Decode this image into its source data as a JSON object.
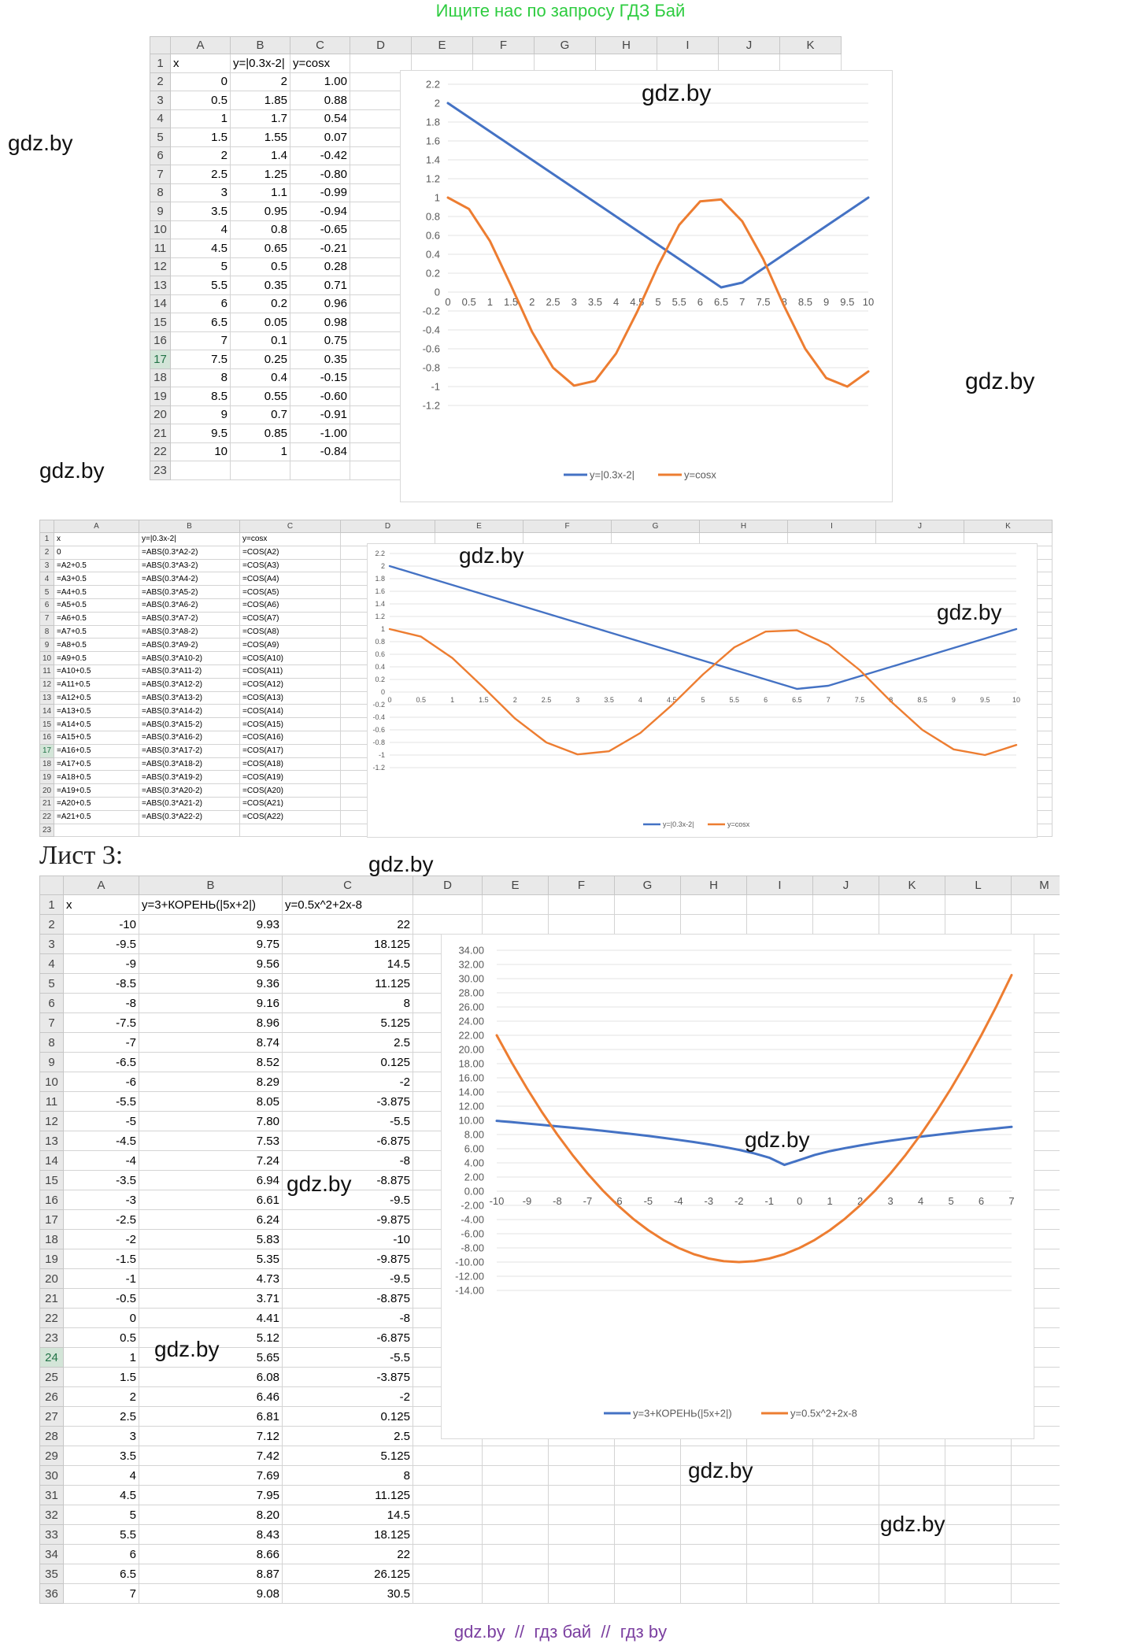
{
  "banner": "Ищите нас по запросу ГДЗ Бай",
  "footer": "gdz.by  //  гдз бай  //  гдз by",
  "watermark": "gdz.by",
  "sheet3_label": "Лист 3:",
  "colors": {
    "blue": "#4472c4",
    "orange": "#ed7d31",
    "banner": "#2ecc40",
    "footer": "#7b3fa0"
  },
  "sheet1": {
    "columns": [
      "A",
      "B",
      "C",
      "D",
      "E",
      "F",
      "G",
      "H",
      "I",
      "J",
      "K"
    ],
    "headers": [
      "x",
      "y=|0.3x-2|",
      "y=cosx"
    ],
    "rows": [
      [
        "0",
        "2",
        "1.00"
      ],
      [
        "0.5",
        "1.85",
        "0.88"
      ],
      [
        "1",
        "1.7",
        "0.54"
      ],
      [
        "1.5",
        "1.55",
        "0.07"
      ],
      [
        "2",
        "1.4",
        "-0.42"
      ],
      [
        "2.5",
        "1.25",
        "-0.80"
      ],
      [
        "3",
        "1.1",
        "-0.99"
      ],
      [
        "3.5",
        "0.95",
        "-0.94"
      ],
      [
        "4",
        "0.8",
        "-0.65"
      ],
      [
        "4.5",
        "0.65",
        "-0.21"
      ],
      [
        "5",
        "0.5",
        "0.28"
      ],
      [
        "5.5",
        "0.35",
        "0.71"
      ],
      [
        "6",
        "0.2",
        "0.96"
      ],
      [
        "6.5",
        "0.05",
        "0.98"
      ],
      [
        "7",
        "0.1",
        "0.75"
      ],
      [
        "7.5",
        "0.25",
        "0.35"
      ],
      [
        "8",
        "0.4",
        "-0.15"
      ],
      [
        "8.5",
        "0.55",
        "-0.60"
      ],
      [
        "9",
        "0.7",
        "-0.91"
      ],
      [
        "9.5",
        "0.85",
        "-1.00"
      ],
      [
        "10",
        "1",
        "-0.84"
      ]
    ]
  },
  "sheet2": {
    "columns": [
      "A",
      "B",
      "C",
      "D",
      "E",
      "F",
      "G",
      "H",
      "I",
      "J",
      "K"
    ],
    "headers": [
      "x",
      "y=|0.3x-2|",
      "y=cosx"
    ],
    "rows": [
      [
        "0",
        "=ABS(0.3*A2-2)",
        "=COS(A2)"
      ],
      [
        "=A2+0.5",
        "=ABS(0.3*A3-2)",
        "=COS(A3)"
      ],
      [
        "=A3+0.5",
        "=ABS(0.3*A4-2)",
        "=COS(A4)"
      ],
      [
        "=A4+0.5",
        "=ABS(0.3*A5-2)",
        "=COS(A5)"
      ],
      [
        "=A5+0.5",
        "=ABS(0.3*A6-2)",
        "=COS(A6)"
      ],
      [
        "=A6+0.5",
        "=ABS(0.3*A7-2)",
        "=COS(A7)"
      ],
      [
        "=A7+0.5",
        "=ABS(0.3*A8-2)",
        "=COS(A8)"
      ],
      [
        "=A8+0.5",
        "=ABS(0.3*A9-2)",
        "=COS(A9)"
      ],
      [
        "=A9+0.5",
        "=ABS(0.3*A10-2)",
        "=COS(A10)"
      ],
      [
        "=A10+0.5",
        "=ABS(0.3*A11-2)",
        "=COS(A11)"
      ],
      [
        "=A11+0.5",
        "=ABS(0.3*A12-2)",
        "=COS(A12)"
      ],
      [
        "=A12+0.5",
        "=ABS(0.3*A13-2)",
        "=COS(A13)"
      ],
      [
        "=A13+0.5",
        "=ABS(0.3*A14-2)",
        "=COS(A14)"
      ],
      [
        "=A14+0.5",
        "=ABS(0.3*A15-2)",
        "=COS(A15)"
      ],
      [
        "=A15+0.5",
        "=ABS(0.3*A16-2)",
        "=COS(A16)"
      ],
      [
        "=A16+0.5",
        "=ABS(0.3*A17-2)",
        "=COS(A17)"
      ],
      [
        "=A17+0.5",
        "=ABS(0.3*A18-2)",
        "=COS(A18)"
      ],
      [
        "=A18+0.5",
        "=ABS(0.3*A19-2)",
        "=COS(A19)"
      ],
      [
        "=A19+0.5",
        "=ABS(0.3*A20-2)",
        "=COS(A20)"
      ],
      [
        "=A20+0.5",
        "=ABS(0.3*A21-2)",
        "=COS(A21)"
      ],
      [
        "=A21+0.5",
        "=ABS(0.3*A22-2)",
        "=COS(A22)"
      ]
    ]
  },
  "sheet3": {
    "columns": [
      "A",
      "B",
      "C",
      "D",
      "E",
      "F",
      "G",
      "H",
      "I",
      "J",
      "K",
      "L",
      "M"
    ],
    "headers": [
      "x",
      "y=3+КОРЕНЬ(|5x+2|)",
      "y=0.5x^2+2x-8"
    ],
    "rows": [
      [
        "-10",
        "9.93",
        "22"
      ],
      [
        "-9.5",
        "9.75",
        "18.125"
      ],
      [
        "-9",
        "9.56",
        "14.5"
      ],
      [
        "-8.5",
        "9.36",
        "11.125"
      ],
      [
        "-8",
        "9.16",
        "8"
      ],
      [
        "-7.5",
        "8.96",
        "5.125"
      ],
      [
        "-7",
        "8.74",
        "2.5"
      ],
      [
        "-6.5",
        "8.52",
        "0.125"
      ],
      [
        "-6",
        "8.29",
        "-2"
      ],
      [
        "-5.5",
        "8.05",
        "-3.875"
      ],
      [
        "-5",
        "7.80",
        "-5.5"
      ],
      [
        "-4.5",
        "7.53",
        "-6.875"
      ],
      [
        "-4",
        "7.24",
        "-8"
      ],
      [
        "-3.5",
        "6.94",
        "-8.875"
      ],
      [
        "-3",
        "6.61",
        "-9.5"
      ],
      [
        "-2.5",
        "6.24",
        "-9.875"
      ],
      [
        "-2",
        "5.83",
        "-10"
      ],
      [
        "-1.5",
        "5.35",
        "-9.875"
      ],
      [
        "-1",
        "4.73",
        "-9.5"
      ],
      [
        "-0.5",
        "3.71",
        "-8.875"
      ],
      [
        "0",
        "4.41",
        "-8"
      ],
      [
        "0.5",
        "5.12",
        "-6.875"
      ],
      [
        "1",
        "5.65",
        "-5.5"
      ],
      [
        "1.5",
        "6.08",
        "-3.875"
      ],
      [
        "2",
        "6.46",
        "-2"
      ],
      [
        "2.5",
        "6.81",
        "0.125"
      ],
      [
        "3",
        "7.12",
        "2.5"
      ],
      [
        "3.5",
        "7.42",
        "5.125"
      ],
      [
        "4",
        "7.69",
        "8"
      ],
      [
        "4.5",
        "7.95",
        "11.125"
      ],
      [
        "5",
        "8.20",
        "14.5"
      ],
      [
        "5.5",
        "8.43",
        "18.125"
      ],
      [
        "6",
        "8.66",
        "22"
      ],
      [
        "6.5",
        "8.87",
        "26.125"
      ],
      [
        "7",
        "9.08",
        "30.5"
      ]
    ]
  },
  "chart_data": [
    {
      "type": "line",
      "x": [
        "0",
        "0.5",
        "1",
        "1.5",
        "2",
        "2.5",
        "3",
        "3.5",
        "4",
        "4.5",
        "5",
        "5.5",
        "6",
        "6.5",
        "7",
        "7.5",
        "8",
        "8.5",
        "9",
        "9.5",
        "10"
      ],
      "series": [
        {
          "name": "y=|0.3x-2|",
          "values": [
            2,
            1.85,
            1.7,
            1.55,
            1.4,
            1.25,
            1.1,
            0.95,
            0.8,
            0.65,
            0.5,
            0.35,
            0.2,
            0.05,
            0.1,
            0.25,
            0.4,
            0.55,
            0.7,
            0.85,
            1
          ]
        },
        {
          "name": "y=cosx",
          "values": [
            1.0,
            0.88,
            0.54,
            0.07,
            -0.42,
            -0.8,
            -0.99,
            -0.94,
            -0.65,
            -0.21,
            0.28,
            0.71,
            0.96,
            0.98,
            0.75,
            0.35,
            -0.15,
            -0.6,
            -0.91,
            -1.0,
            -0.84
          ]
        }
      ],
      "yticks": [
        "2.2",
        "2",
        "1.8",
        "1.6",
        "1.4",
        "1.2",
        "1",
        "0.8",
        "0.6",
        "0.4",
        "0.2",
        "0",
        "-0.2",
        "-0.4",
        "-0.6",
        "-0.8",
        "-1",
        "-1.2"
      ],
      "ylim": [
        -1.2,
        2.2
      ],
      "legend": "bottom"
    },
    {
      "type": "line",
      "x": [
        "0",
        "0.5",
        "1",
        "1.5",
        "2",
        "2.5",
        "3",
        "3.5",
        "4",
        "4.5",
        "5",
        "5.5",
        "6",
        "6.5",
        "7",
        "7.5",
        "8",
        "8.5",
        "9",
        "9.5",
        "10"
      ],
      "series": [
        {
          "name": "y=|0.3x-2|",
          "values": [
            2,
            1.85,
            1.7,
            1.55,
            1.4,
            1.25,
            1.1,
            0.95,
            0.8,
            0.65,
            0.5,
            0.35,
            0.2,
            0.05,
            0.1,
            0.25,
            0.4,
            0.55,
            0.7,
            0.85,
            1
          ]
        },
        {
          "name": "y=cosx",
          "values": [
            1.0,
            0.88,
            0.54,
            0.07,
            -0.42,
            -0.8,
            -0.99,
            -0.94,
            -0.65,
            -0.21,
            0.28,
            0.71,
            0.96,
            0.98,
            0.75,
            0.35,
            -0.15,
            -0.6,
            -0.91,
            -1.0,
            -0.84
          ]
        }
      ],
      "yticks": [
        "2.2",
        "2",
        "1.8",
        "1.6",
        "1.4",
        "1.2",
        "1",
        "0.8",
        "0.6",
        "0.4",
        "0.2",
        "0",
        "-0.2",
        "-0.4",
        "-0.6",
        "-0.8",
        "-1",
        "-1.2"
      ],
      "ylim": [
        -1.2,
        2.2
      ],
      "legend": "bottom"
    },
    {
      "type": "line",
      "x": [
        "-10",
        "-9.5",
        "-9",
        "-8.5",
        "-8",
        "-7.5",
        "-7",
        "-6.5",
        "-6",
        "-5.5",
        "-5",
        "-4.5",
        "-4",
        "-3.5",
        "-3",
        "-2.5",
        "-2",
        "-1.5",
        "-1",
        "-0.5",
        "0",
        "0.5",
        "1",
        "1.5",
        "2",
        "2.5",
        "3",
        "3.5",
        "4",
        "4.5",
        "5",
        "5.5",
        "6",
        "6.5",
        "7"
      ],
      "xticks": [
        "-10",
        "-9",
        "-8",
        "-7",
        "-6",
        "-5",
        "-4",
        "-3",
        "-2",
        "-1",
        "0",
        "1",
        "2",
        "3",
        "4",
        "5",
        "6",
        "7"
      ],
      "series": [
        {
          "name": "y=3+КОРЕНЬ(|5x+2|)",
          "values": [
            9.93,
            9.75,
            9.56,
            9.36,
            9.16,
            8.96,
            8.74,
            8.52,
            8.29,
            8.05,
            7.8,
            7.53,
            7.24,
            6.94,
            6.61,
            6.24,
            5.83,
            5.35,
            4.73,
            3.71,
            4.41,
            5.12,
            5.65,
            6.08,
            6.46,
            6.81,
            7.12,
            7.42,
            7.69,
            7.95,
            8.2,
            8.43,
            8.66,
            8.87,
            9.08
          ]
        },
        {
          "name": "y=0.5x^2+2x-8",
          "values": [
            22,
            18.125,
            14.5,
            11.125,
            8,
            5.125,
            2.5,
            0.125,
            -2,
            -3.875,
            -5.5,
            -6.875,
            -8,
            -8.875,
            -9.5,
            -9.875,
            -10,
            -9.875,
            -9.5,
            -8.875,
            -8,
            -6.875,
            -5.5,
            -3.875,
            -2,
            0.125,
            2.5,
            5.125,
            8,
            11.125,
            14.5,
            18.125,
            22,
            26.125,
            30.5
          ]
        }
      ],
      "yticks": [
        "34.00",
        "32.00",
        "30.00",
        "28.00",
        "26.00",
        "24.00",
        "22.00",
        "20.00",
        "18.00",
        "16.00",
        "14.00",
        "12.00",
        "10.00",
        "8.00",
        "6.00",
        "4.00",
        "2.00",
        "0.00",
        "-2.00",
        "-4.00",
        "-6.00",
        "-8.00",
        "-10.00",
        "-12.00",
        "-14.00"
      ],
      "ylim": [
        -14,
        34
      ],
      "legend": "bottom"
    }
  ]
}
